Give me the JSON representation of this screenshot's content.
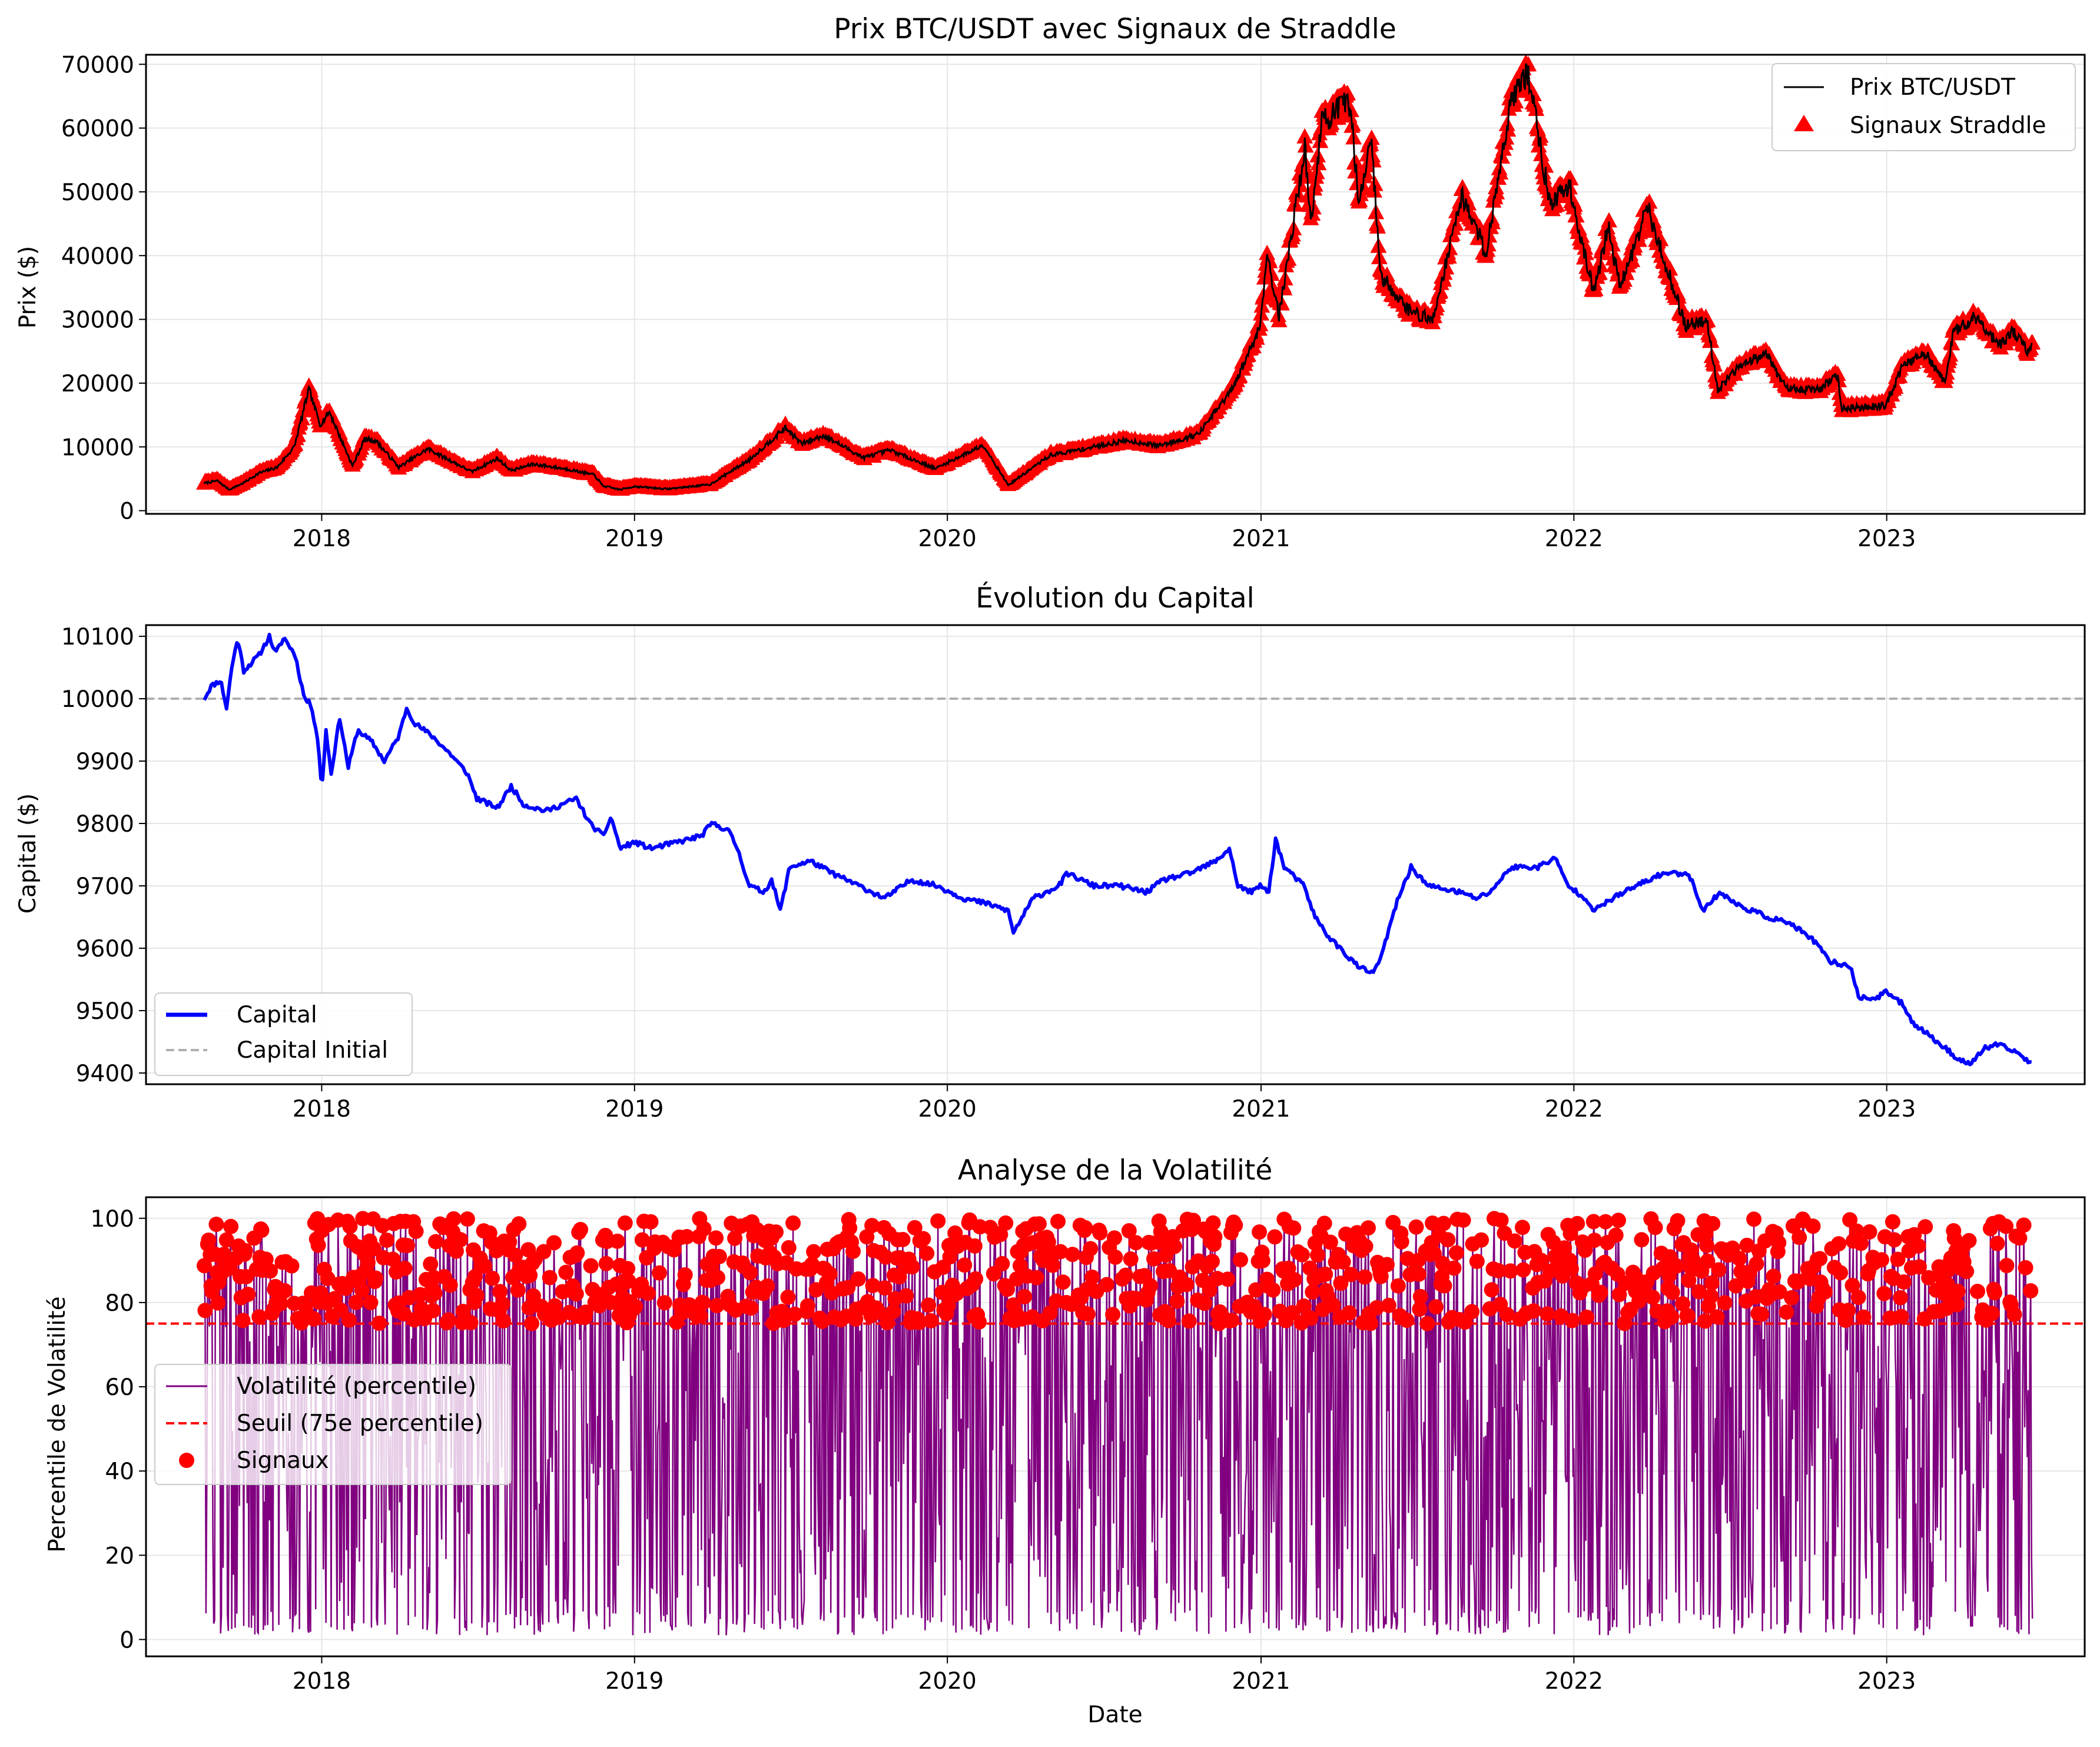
{
  "colors": {
    "price": "#000000",
    "signal": "#ff0000",
    "capital": "#0000ff",
    "initial": "#b0b0b0",
    "vol": "#800080",
    "threshold": "#ff0000",
    "grid": "#e6e6e6"
  },
  "chart_data": [
    {
      "type": "line",
      "title": "Prix BTC/USDT avec Signaux de Straddle",
      "xlabel": "",
      "ylabel": "Prix ($)",
      "xlim": [
        "2017-06-10",
        "2023-08-20"
      ],
      "ylim": [
        -500,
        71500
      ],
      "x_ticks": [
        "2018",
        "2019",
        "2020",
        "2021",
        "2022",
        "2023"
      ],
      "y_ticks": [
        0,
        10000,
        20000,
        30000,
        40000,
        50000,
        60000,
        70000
      ],
      "grid": true,
      "legend_position": "upper right",
      "legend": [
        "Prix BTC/USDT",
        "Signaux Straddle"
      ],
      "series": [
        {
          "name": "Prix BTC/USDT",
          "style": "line",
          "points": [
            [
              "2017-08-17",
              4300
            ],
            [
              "2017-09-01",
              4700
            ],
            [
              "2017-09-15",
              3300
            ],
            [
              "2017-10-01",
              4300
            ],
            [
              "2017-10-20",
              5900
            ],
            [
              "2017-11-10",
              6800
            ],
            [
              "2017-11-30",
              10000
            ],
            [
              "2017-12-17",
              19000
            ],
            [
              "2017-12-30",
              13500
            ],
            [
              "2018-01-10",
              15500
            ],
            [
              "2018-02-06",
              7000
            ],
            [
              "2018-02-20",
              11200
            ],
            [
              "2018-03-05",
              11000
            ],
            [
              "2018-04-01",
              6800
            ],
            [
              "2018-05-05",
              9700
            ],
            [
              "2018-06-25",
              6100
            ],
            [
              "2018-07-25",
              8200
            ],
            [
              "2018-08-10",
              6300
            ],
            [
              "2018-09-05",
              7300
            ],
            [
              "2018-10-15",
              6500
            ],
            [
              "2018-11-15",
              5600
            ],
            [
              "2018-11-25",
              3900
            ],
            [
              "2018-12-15",
              3300
            ],
            [
              "2019-01-01",
              3800
            ],
            [
              "2019-02-08",
              3400
            ],
            [
              "2019-03-30",
              4100
            ],
            [
              "2019-05-15",
              8000
            ],
            [
              "2019-06-26",
              13000
            ],
            [
              "2019-07-15",
              10500
            ],
            [
              "2019-08-10",
              11800
            ],
            [
              "2019-09-25",
              8300
            ],
            [
              "2019-10-26",
              9500
            ],
            [
              "2019-12-18",
              6600
            ],
            [
              "2020-02-12",
              10300
            ],
            [
              "2020-03-12",
              4000
            ],
            [
              "2020-04-30",
              8700
            ],
            [
              "2020-06-01",
              9500
            ],
            [
              "2020-07-27",
              11000
            ],
            [
              "2020-09-05",
              10200
            ],
            [
              "2020-10-20",
              12000
            ],
            [
              "2020-11-30",
              19300
            ],
            [
              "2020-12-31",
              29000
            ],
            [
              "2021-01-08",
              40500
            ],
            [
              "2021-01-22",
              30500
            ],
            [
              "2021-02-21",
              57000
            ],
            [
              "2021-02-28",
              45000
            ],
            [
              "2021-03-13",
              61000
            ],
            [
              "2021-04-14",
              64000
            ],
            [
              "2021-04-25",
              49000
            ],
            [
              "2021-05-10",
              58000
            ],
            [
              "2021-05-20",
              37000
            ],
            [
              "2021-06-22",
              31500
            ],
            [
              "2021-07-20",
              29800
            ],
            [
              "2021-08-23",
              49500
            ],
            [
              "2021-09-21",
              40500
            ],
            [
              "2021-10-20",
              65000
            ],
            [
              "2021-11-09",
              68500
            ],
            [
              "2021-12-04",
              48000
            ],
            [
              "2021-12-27",
              51000
            ],
            [
              "2022-01-24",
              34000
            ],
            [
              "2022-02-10",
              44500
            ],
            [
              "2022-02-24",
              35000
            ],
            [
              "2022-03-28",
              47500
            ],
            [
              "2022-05-11",
              29000
            ],
            [
              "2022-06-05",
              30000
            ],
            [
              "2022-06-18",
              19000
            ],
            [
              "2022-07-20",
              23500
            ],
            [
              "2022-08-14",
              24500
            ],
            [
              "2022-09-06",
              19000
            ],
            [
              "2022-10-15",
              19100
            ],
            [
              "2022-11-05",
              21300
            ],
            [
              "2022-11-09",
              16000
            ],
            [
              "2022-12-31",
              16500
            ],
            [
              "2023-01-21",
              23000
            ],
            [
              "2023-02-16",
              24600
            ],
            [
              "2023-03-10",
              20000
            ],
            [
              "2023-03-20",
              28000
            ],
            [
              "2023-04-14",
              30500
            ],
            [
              "2023-05-12",
              26000
            ],
            [
              "2023-05-28",
              28000
            ],
            [
              "2023-06-15",
              25000
            ],
            [
              "2023-06-20",
              26500
            ]
          ]
        },
        {
          "name": "Signaux Straddle",
          "style": "marker-triangle",
          "note_source": "same dates as price"
        }
      ]
    },
    {
      "type": "line",
      "title": "Évolution du Capital",
      "xlabel": "",
      "ylabel": "Capital ($)",
      "xlim": [
        "2017-06-10",
        "2023-08-20"
      ],
      "ylim": [
        9382,
        10118
      ],
      "x_ticks": [
        "2018",
        "2019",
        "2020",
        "2021",
        "2022",
        "2023"
      ],
      "y_ticks": [
        9400,
        9500,
        9600,
        9700,
        9800,
        9900,
        10000,
        10100
      ],
      "grid": true,
      "legend_position": "lower left",
      "legend": [
        "Capital",
        "Capital Initial"
      ],
      "hline": 10000,
      "series": [
        {
          "name": "Capital",
          "points": [
            [
              "2017-08-17",
              10000
            ],
            [
              "2017-08-25",
              10020
            ],
            [
              "2017-09-05",
              10030
            ],
            [
              "2017-09-12",
              9985
            ],
            [
              "2017-09-18",
              10050
            ],
            [
              "2017-09-25",
              10097
            ],
            [
              "2017-10-02",
              10045
            ],
            [
              "2017-10-20",
              10070
            ],
            [
              "2017-11-01",
              10100
            ],
            [
              "2017-11-08",
              10072
            ],
            [
              "2017-11-18",
              10098
            ],
            [
              "2017-12-01",
              10070
            ],
            [
              "2017-12-12",
              10000
            ],
            [
              "2017-12-20",
              9990
            ],
            [
              "2017-12-28",
              9930
            ],
            [
              "2018-01-01",
              9850
            ],
            [
              "2018-01-06",
              9950
            ],
            [
              "2018-01-12",
              9880
            ],
            [
              "2018-01-22",
              9970
            ],
            [
              "2018-02-01",
              9890
            ],
            [
              "2018-02-12",
              9950
            ],
            [
              "2018-03-01",
              9930
            ],
            [
              "2018-03-15",
              9900
            ],
            [
              "2018-04-01",
              9940
            ],
            [
              "2018-04-10",
              9985
            ],
            [
              "2018-04-20",
              9960
            ],
            [
              "2018-05-10",
              9940
            ],
            [
              "2018-06-01",
              9910
            ],
            [
              "2018-06-20",
              9880
            ],
            [
              "2018-07-01",
              9840
            ],
            [
              "2018-07-25",
              9825
            ],
            [
              "2018-08-10",
              9860
            ],
            [
              "2018-08-25",
              9830
            ],
            [
              "2018-09-20",
              9820
            ],
            [
              "2018-10-25",
              9840
            ],
            [
              "2018-11-10",
              9800
            ],
            [
              "2018-11-25",
              9780
            ],
            [
              "2018-12-05",
              9810
            ],
            [
              "2018-12-15",
              9760
            ],
            [
              "2019-01-01",
              9770
            ],
            [
              "2019-01-20",
              9760
            ],
            [
              "2019-02-20",
              9770
            ],
            [
              "2019-03-20",
              9780
            ],
            [
              "2019-04-01",
              9800
            ],
            [
              "2019-04-20",
              9790
            ],
            [
              "2019-05-01",
              9760
            ],
            [
              "2019-05-15",
              9700
            ],
            [
              "2019-06-01",
              9690
            ],
            [
              "2019-06-10",
              9710
            ],
            [
              "2019-06-20",
              9660
            ],
            [
              "2019-07-01",
              9730
            ],
            [
              "2019-07-25",
              9740
            ],
            [
              "2019-08-20",
              9720
            ],
            [
              "2019-09-20",
              9700
            ],
            [
              "2019-10-20",
              9680
            ],
            [
              "2019-11-20",
              9710
            ],
            [
              "2019-12-20",
              9700
            ],
            [
              "2020-01-20",
              9680
            ],
            [
              "2020-02-20",
              9670
            ],
            [
              "2020-03-12",
              9660
            ],
            [
              "2020-03-18",
              9625
            ],
            [
              "2020-04-10",
              9680
            ],
            [
              "2020-05-10",
              9700
            ],
            [
              "2020-05-20",
              9720
            ],
            [
              "2020-06-20",
              9700
            ],
            [
              "2020-07-20",
              9700
            ],
            [
              "2020-08-20",
              9690
            ],
            [
              "2020-09-10",
              9710
            ],
            [
              "2020-10-10",
              9720
            ],
            [
              "2020-11-10",
              9740
            ],
            [
              "2020-11-25",
              9760
            ],
            [
              "2020-12-05",
              9700
            ],
            [
              "2020-12-20",
              9690
            ],
            [
              "2021-01-01",
              9700
            ],
            [
              "2021-01-10",
              9690
            ],
            [
              "2021-01-18",
              9775
            ],
            [
              "2021-01-28",
              9730
            ],
            [
              "2021-02-20",
              9700
            ],
            [
              "2021-03-05",
              9650
            ],
            [
              "2021-03-20",
              9620
            ],
            [
              "2021-04-10",
              9590
            ],
            [
              "2021-04-25",
              9570
            ],
            [
              "2021-05-10",
              9560
            ],
            [
              "2021-05-20",
              9580
            ],
            [
              "2021-05-28",
              9620
            ],
            [
              "2021-06-10",
              9680
            ],
            [
              "2021-06-25",
              9730
            ],
            [
              "2021-07-15",
              9700
            ],
            [
              "2021-08-20",
              9690
            ],
            [
              "2021-09-10",
              9680
            ],
            [
              "2021-09-25",
              9690
            ],
            [
              "2021-10-20",
              9730
            ],
            [
              "2021-11-20",
              9730
            ],
            [
              "2021-12-10",
              9745
            ],
            [
              "2021-12-25",
              9700
            ],
            [
              "2022-01-15",
              9680
            ],
            [
              "2022-01-25",
              9660
            ],
            [
              "2022-02-15",
              9680
            ],
            [
              "2022-03-15",
              9700
            ],
            [
              "2022-04-15",
              9720
            ],
            [
              "2022-05-15",
              9720
            ],
            [
              "2022-06-01",
              9660
            ],
            [
              "2022-06-20",
              9690
            ],
            [
              "2022-07-10",
              9670
            ],
            [
              "2022-08-15",
              9650
            ],
            [
              "2022-09-10",
              9640
            ],
            [
              "2022-10-10",
              9610
            ],
            [
              "2022-10-25",
              9580
            ],
            [
              "2022-11-20",
              9570
            ],
            [
              "2022-11-30",
              9520
            ],
            [
              "2022-12-20",
              9520
            ],
            [
              "2023-01-01",
              9530
            ],
            [
              "2023-01-20",
              9510
            ],
            [
              "2023-02-01",
              9480
            ],
            [
              "2023-02-20",
              9460
            ],
            [
              "2023-03-10",
              9440
            ],
            [
              "2023-03-28",
              9420
            ],
            [
              "2023-04-10",
              9415
            ],
            [
              "2023-04-25",
              9440
            ],
            [
              "2023-05-10",
              9445
            ],
            [
              "2023-05-25",
              9438
            ],
            [
              "2023-06-05",
              9430
            ],
            [
              "2023-06-20",
              9415
            ]
          ]
        },
        {
          "name": "Capital Initial",
          "style": "dashed",
          "value": 10000
        }
      ]
    },
    {
      "type": "line",
      "title": "Analyse de la Volatilité",
      "xlabel": "Date",
      "ylabel": "Percentile de Volatilité",
      "xlim": [
        "2017-06-10",
        "2023-08-20"
      ],
      "ylim": [
        -4,
        105
      ],
      "x_ticks": [
        "2018",
        "2019",
        "2020",
        "2021",
        "2022",
        "2023"
      ],
      "y_ticks": [
        0,
        20,
        40,
        60,
        80,
        100
      ],
      "grid": true,
      "legend_position": "center left",
      "legend": [
        "Volatilité (percentile)",
        "Seuil (75e percentile)",
        "Signaux"
      ],
      "threshold": 75,
      "series": [
        {
          "name": "Volatilité (percentile)",
          "range": [
            1,
            100
          ],
          "date_range": [
            "2017-08-17",
            "2023-06-20"
          ],
          "sampling": "daily"
        },
        {
          "name": "Seuil (75e percentile)",
          "style": "dashed",
          "value": 75
        },
        {
          "name": "Signaux",
          "style": "marker-circle",
          "range": [
            75,
            100
          ]
        }
      ]
    }
  ]
}
